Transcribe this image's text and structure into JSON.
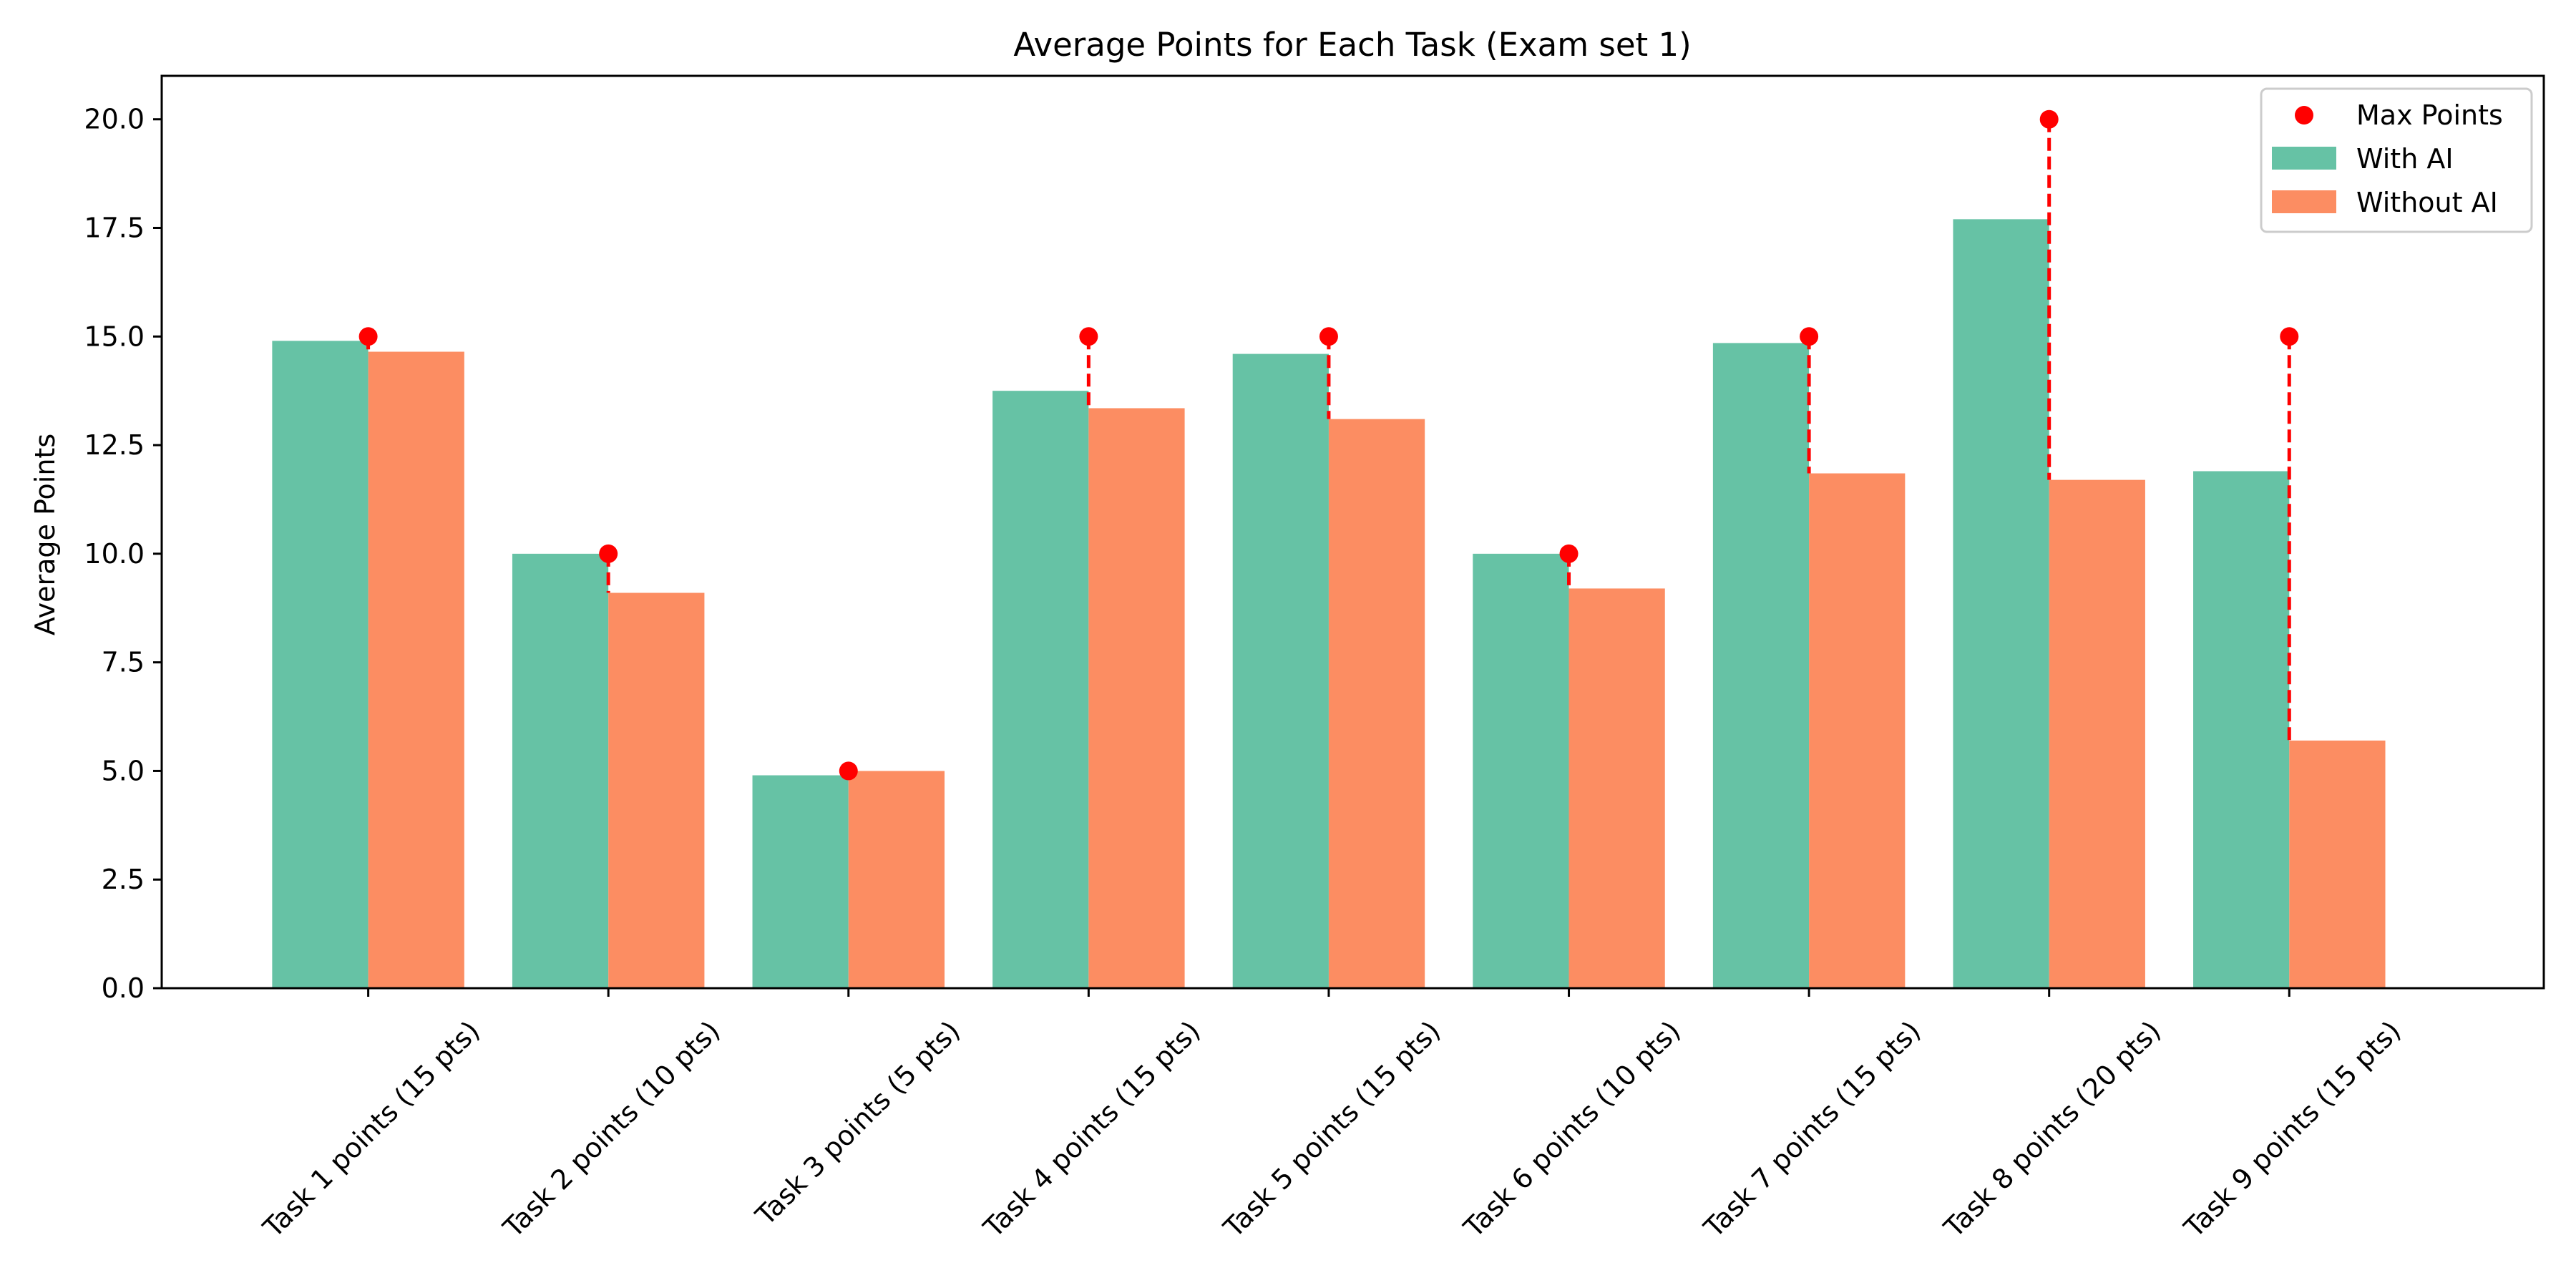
{
  "chart_data": {
    "type": "bar",
    "title": "Average Points for Each Task (Exam set 1)",
    "xlabel": "",
    "ylabel": "Average Points",
    "ylim": [
      0,
      21
    ],
    "yticks": [
      "0.0",
      "2.5",
      "5.0",
      "7.5",
      "10.0",
      "12.5",
      "15.0",
      "17.5",
      "20.0"
    ],
    "categories": [
      "Task 1 points (15 pts)",
      "Task 2 points (10 pts)",
      "Task 3 points (5 pts)",
      "Task 4 points (15 pts)",
      "Task 5 points (15 pts)",
      "Task 6 points (10 pts)",
      "Task 7 points (15 pts)",
      "Task 8 points (20 pts)",
      "Task 9 points (15 pts)"
    ],
    "series": [
      {
        "name": "With AI",
        "color": "#66c2a5",
        "values": [
          14.9,
          10.0,
          4.9,
          13.75,
          14.6,
          10.0,
          14.85,
          17.7,
          11.9
        ]
      },
      {
        "name": "Without AI",
        "color": "#fc8d62",
        "values": [
          14.65,
          9.1,
          5.0,
          13.35,
          13.1,
          9.2,
          11.85,
          11.7,
          5.7
        ]
      }
    ],
    "max_points": {
      "name": "Max Points",
      "color": "#ff0000",
      "values": [
        15,
        10,
        5,
        15,
        15,
        10,
        15,
        20,
        15
      ]
    },
    "legend_position": "top-right",
    "grid": false
  }
}
